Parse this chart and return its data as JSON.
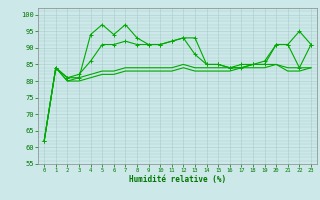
{
  "xlabel": "Humidité relative (%)",
  "x": [
    0,
    1,
    2,
    3,
    4,
    5,
    6,
    7,
    8,
    9,
    10,
    11,
    12,
    13,
    14,
    15,
    16,
    17,
    18,
    19,
    20,
    21,
    22,
    23
  ],
  "line1": [
    62,
    84,
    81,
    81,
    94,
    97,
    94,
    97,
    93,
    91,
    91,
    92,
    93,
    93,
    85,
    85,
    84,
    84,
    85,
    85,
    91,
    91,
    95,
    91
  ],
  "line2": [
    62,
    84,
    81,
    82,
    86,
    91,
    91,
    92,
    91,
    91,
    91,
    92,
    93,
    88,
    85,
    85,
    84,
    85,
    85,
    86,
    91,
    91,
    84,
    91
  ],
  "line3": [
    62,
    84,
    80,
    81,
    82,
    83,
    83,
    84,
    84,
    84,
    84,
    84,
    85,
    84,
    84,
    84,
    84,
    84,
    85,
    85,
    85,
    84,
    84,
    84
  ],
  "line4": [
    62,
    84,
    80,
    80,
    81,
    82,
    82,
    83,
    83,
    83,
    83,
    83,
    84,
    83,
    83,
    83,
    83,
    84,
    84,
    84,
    85,
    83,
    83,
    84
  ],
  "bg_color": "#cce8e8",
  "grid_color": "#aacccc",
  "line_color": "#00aa00",
  "ylim": [
    55,
    102
  ],
  "yticks": [
    55,
    60,
    65,
    70,
    75,
    80,
    85,
    90,
    95,
    100
  ],
  "figsize": [
    3.2,
    2.0
  ],
  "dpi": 100
}
